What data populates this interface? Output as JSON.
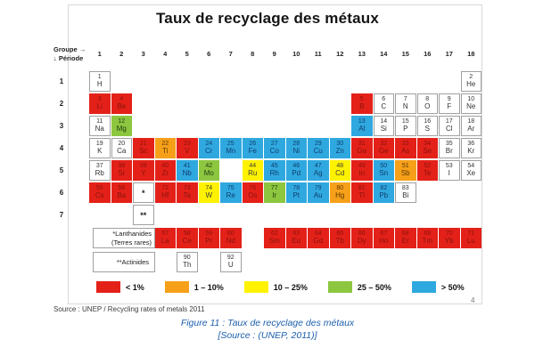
{
  "title": "Taux de recyclage des métaux",
  "table_header": {
    "group_label": "Groupe →",
    "period_label": "↓ Période",
    "groups": [
      "1",
      "2",
      "3",
      "4",
      "5",
      "6",
      "7",
      "8",
      "9",
      "10",
      "11",
      "12",
      "13",
      "14",
      "15",
      "16",
      "17",
      "18"
    ],
    "periods": [
      "1",
      "2",
      "3",
      "4",
      "5",
      "6",
      "7"
    ]
  },
  "colors": {
    "red": "#E32119",
    "orange": "#F6A01A",
    "yellow": "#FFF200",
    "green": "#8DC63F",
    "blue": "#2FA8DF",
    "none": "#FFFFFF"
  },
  "legend": [
    {
      "key": "red",
      "label": "< 1%"
    },
    {
      "key": "orange",
      "label": "1 – 10%"
    },
    {
      "key": "yellow",
      "label": "10 – 25%"
    },
    {
      "key": "green",
      "label": "25 – 50%"
    },
    {
      "key": "blue",
      "label": "> 50%"
    }
  ],
  "figure": {
    "source_line": "Source : UNEP / Recycling rates of metals 2011",
    "page_number": "4",
    "caption_line1": "Figure 11 : Taux de recyclage des métaux",
    "caption_line2": "[Source : (UNEP, 2011)]"
  },
  "chart_data": {
    "type": "heatmap",
    "title": "Taux de recyclage des métaux",
    "legend_categories": [
      "< 1%",
      "1 – 10%",
      "10 – 25%",
      "25 – 50%",
      "> 50%"
    ],
    "value_key": "recycling-rate-category",
    "elements": [
      {
        "n": "1",
        "s": "H",
        "p": 1,
        "g": 1,
        "c": "none"
      },
      {
        "n": "2",
        "s": "He",
        "p": 1,
        "g": 18,
        "c": "none"
      },
      {
        "n": "3",
        "s": "Li",
        "p": 2,
        "g": 1,
        "c": "red"
      },
      {
        "n": "4",
        "s": "Be",
        "p": 2,
        "g": 2,
        "c": "red"
      },
      {
        "n": "5",
        "s": "B",
        "p": 2,
        "g": 13,
        "c": "red"
      },
      {
        "n": "6",
        "s": "C",
        "p": 2,
        "g": 14,
        "c": "none"
      },
      {
        "n": "7",
        "s": "N",
        "p": 2,
        "g": 15,
        "c": "none"
      },
      {
        "n": "8",
        "s": "O",
        "p": 2,
        "g": 16,
        "c": "none"
      },
      {
        "n": "9",
        "s": "F",
        "p": 2,
        "g": 17,
        "c": "none"
      },
      {
        "n": "10",
        "s": "Ne",
        "p": 2,
        "g": 18,
        "c": "none"
      },
      {
        "n": "11",
        "s": "Na",
        "p": 3,
        "g": 1,
        "c": "none"
      },
      {
        "n": "12",
        "s": "Mg",
        "p": 3,
        "g": 2,
        "c": "green"
      },
      {
        "n": "13",
        "s": "Al",
        "p": 3,
        "g": 13,
        "c": "blue"
      },
      {
        "n": "14",
        "s": "Si",
        "p": 3,
        "g": 14,
        "c": "none"
      },
      {
        "n": "15",
        "s": "P",
        "p": 3,
        "g": 15,
        "c": "none"
      },
      {
        "n": "16",
        "s": "S",
        "p": 3,
        "g": 16,
        "c": "none"
      },
      {
        "n": "17",
        "s": "Cl",
        "p": 3,
        "g": 17,
        "c": "none"
      },
      {
        "n": "18",
        "s": "Ar",
        "p": 3,
        "g": 18,
        "c": "none"
      },
      {
        "n": "19",
        "s": "K",
        "p": 4,
        "g": 1,
        "c": "none"
      },
      {
        "n": "20",
        "s": "Ca",
        "p": 4,
        "g": 2,
        "c": "none"
      },
      {
        "n": "21",
        "s": "Sc",
        "p": 4,
        "g": 3,
        "c": "red"
      },
      {
        "n": "22",
        "s": "Ti",
        "p": 4,
        "g": 4,
        "c": "orange"
      },
      {
        "n": "23",
        "s": "V",
        "p": 4,
        "g": 5,
        "c": "red"
      },
      {
        "n": "24",
        "s": "Cr",
        "p": 4,
        "g": 6,
        "c": "blue"
      },
      {
        "n": "25",
        "s": "Mn",
        "p": 4,
        "g": 7,
        "c": "blue"
      },
      {
        "n": "26",
        "s": "Fe",
        "p": 4,
        "g": 8,
        "c": "blue"
      },
      {
        "n": "27",
        "s": "Co",
        "p": 4,
        "g": 9,
        "c": "blue"
      },
      {
        "n": "28",
        "s": "Ni",
        "p": 4,
        "g": 10,
        "c": "blue"
      },
      {
        "n": "29",
        "s": "Cu",
        "p": 4,
        "g": 11,
        "c": "blue"
      },
      {
        "n": "30",
        "s": "Zn",
        "p": 4,
        "g": 12,
        "c": "blue"
      },
      {
        "n": "31",
        "s": "Ga",
        "p": 4,
        "g": 13,
        "c": "red"
      },
      {
        "n": "32",
        "s": "Ge",
        "p": 4,
        "g": 14,
        "c": "red"
      },
      {
        "n": "33",
        "s": "As",
        "p": 4,
        "g": 15,
        "c": "red"
      },
      {
        "n": "34",
        "s": "Se",
        "p": 4,
        "g": 16,
        "c": "red"
      },
      {
        "n": "35",
        "s": "Br",
        "p": 4,
        "g": 17,
        "c": "none"
      },
      {
        "n": "36",
        "s": "Kr",
        "p": 4,
        "g": 18,
        "c": "none"
      },
      {
        "n": "37",
        "s": "Rb",
        "p": 5,
        "g": 1,
        "c": "none"
      },
      {
        "n": "38",
        "s": "Sr",
        "p": 5,
        "g": 2,
        "c": "red"
      },
      {
        "n": "39",
        "s": "Y",
        "p": 5,
        "g": 3,
        "c": "red"
      },
      {
        "n": "40",
        "s": "Zr",
        "p": 5,
        "g": 4,
        "c": "red"
      },
      {
        "n": "41",
        "s": "Nb",
        "p": 5,
        "g": 5,
        "c": "blue"
      },
      {
        "n": "42",
        "s": "Mo",
        "p": 5,
        "g": 6,
        "c": "green"
      },
      {
        "n": "44",
        "s": "Ru",
        "p": 5,
        "g": 8,
        "c": "yellow"
      },
      {
        "n": "45",
        "s": "Rh",
        "p": 5,
        "g": 9,
        "c": "blue"
      },
      {
        "n": "46",
        "s": "Pd",
        "p": 5,
        "g": 10,
        "c": "blue"
      },
      {
        "n": "47",
        "s": "Ag",
        "p": 5,
        "g": 11,
        "c": "blue"
      },
      {
        "n": "48",
        "s": "Cd",
        "p": 5,
        "g": 12,
        "c": "yellow"
      },
      {
        "n": "49",
        "s": "In",
        "p": 5,
        "g": 13,
        "c": "red"
      },
      {
        "n": "50",
        "s": "Sn",
        "p": 5,
        "g": 14,
        "c": "blue"
      },
      {
        "n": "51",
        "s": "Sb",
        "p": 5,
        "g": 15,
        "c": "orange"
      },
      {
        "n": "52",
        "s": "Te",
        "p": 5,
        "g": 16,
        "c": "red"
      },
      {
        "n": "53",
        "s": "I",
        "p": 5,
        "g": 17,
        "c": "none"
      },
      {
        "n": "54",
        "s": "Xe",
        "p": 5,
        "g": 18,
        "c": "none"
      },
      {
        "n": "55",
        "s": "Cs",
        "p": 6,
        "g": 1,
        "c": "red"
      },
      {
        "n": "56",
        "s": "Ba",
        "p": 6,
        "g": 2,
        "c": "red"
      },
      {
        "n": "72",
        "s": "Hf",
        "p": 6,
        "g": 4,
        "c": "red"
      },
      {
        "n": "73",
        "s": "Ta",
        "p": 6,
        "g": 5,
        "c": "red"
      },
      {
        "n": "74",
        "s": "W",
        "p": 6,
        "g": 6,
        "c": "yellow"
      },
      {
        "n": "75",
        "s": "Re",
        "p": 6,
        "g": 7,
        "c": "blue"
      },
      {
        "n": "76",
        "s": "Os",
        "p": 6,
        "g": 8,
        "c": "red"
      },
      {
        "n": "77",
        "s": "Ir",
        "p": 6,
        "g": 9,
        "c": "green"
      },
      {
        "n": "78",
        "s": "Pt",
        "p": 6,
        "g": 10,
        "c": "blue"
      },
      {
        "n": "79",
        "s": "Au",
        "p": 6,
        "g": 11,
        "c": "blue"
      },
      {
        "n": "80",
        "s": "Hg",
        "p": 6,
        "g": 12,
        "c": "orange"
      },
      {
        "n": "81",
        "s": "Tl",
        "p": 6,
        "g": 13,
        "c": "red"
      },
      {
        "n": "82",
        "s": "Pb",
        "p": 6,
        "g": 14,
        "c": "blue"
      },
      {
        "n": "83",
        "s": "Bi",
        "p": 6,
        "g": 15,
        "c": "none"
      }
    ],
    "special_cells": [
      {
        "label": "*",
        "p": 6,
        "g": 3
      },
      {
        "label": "**",
        "p": 7,
        "g": 3
      }
    ],
    "lanthanides": {
      "label1": "*Lanthanides",
      "label2": "(Terres rares)",
      "row": [
        {
          "n": "57",
          "s": "La",
          "col": 4,
          "c": "red"
        },
        {
          "n": "58",
          "s": "Ce",
          "col": 5,
          "c": "red"
        },
        {
          "n": "59",
          "s": "Pr",
          "col": 6,
          "c": "red"
        },
        {
          "n": "60",
          "s": "Nd",
          "col": 7,
          "c": "red"
        },
        {
          "n": "62",
          "s": "Sm",
          "col": 9,
          "c": "red"
        },
        {
          "n": "63",
          "s": "Eu",
          "col": 10,
          "c": "red"
        },
        {
          "n": "64",
          "s": "Gd",
          "col": 11,
          "c": "red"
        },
        {
          "n": "65",
          "s": "Tb",
          "col": 12,
          "c": "red"
        },
        {
          "n": "66",
          "s": "Dy",
          "col": 13,
          "c": "red"
        },
        {
          "n": "67",
          "s": "Ho",
          "col": 14,
          "c": "red"
        },
        {
          "n": "68",
          "s": "Er",
          "col": 15,
          "c": "red"
        },
        {
          "n": "69",
          "s": "Tm",
          "col": 16,
          "c": "red"
        },
        {
          "n": "70",
          "s": "Yb",
          "col": 17,
          "c": "red"
        },
        {
          "n": "71",
          "s": "Lu",
          "col": 18,
          "c": "red"
        }
      ]
    },
    "actinides": {
      "label": "**Actinides",
      "row": [
        {
          "n": "90",
          "s": "Th",
          "col": 5,
          "c": "none"
        },
        {
          "n": "92",
          "s": "U",
          "col": 7,
          "c": "none"
        }
      ]
    }
  }
}
